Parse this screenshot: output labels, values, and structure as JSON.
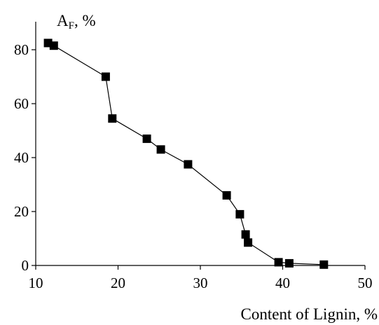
{
  "chart_data": {
    "type": "line",
    "title": "",
    "xlabel": "Content of Lignin, %",
    "ylabel_main": "A",
    "ylabel_sub": "F",
    "ylabel_suffix": ", %",
    "xlim": [
      10,
      50
    ],
    "ylim": [
      0,
      90
    ],
    "x_ticks": [
      10,
      20,
      30,
      40,
      50
    ],
    "y_ticks": [
      0,
      20,
      40,
      60,
      80
    ],
    "grid": false,
    "marker": "square",
    "series": [
      {
        "x": [
          11.5,
          12.2,
          18.5,
          19.3,
          23.5,
          25.2,
          28.5,
          33.2,
          34.8,
          35.5,
          35.8,
          39.5,
          40.8,
          45.0
        ],
        "y": [
          82.5,
          81.5,
          70.0,
          54.5,
          47.0,
          43.0,
          37.5,
          26.0,
          19.0,
          11.5,
          8.5,
          1.2,
          0.8,
          0.3
        ]
      }
    ]
  }
}
